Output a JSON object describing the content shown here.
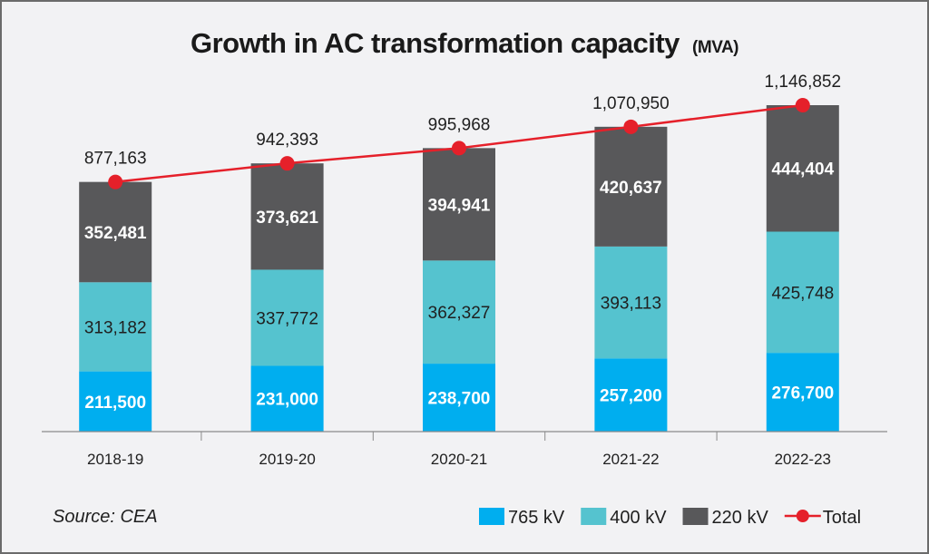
{
  "chart_data": {
    "type": "bar",
    "stacked": true,
    "title": "Growth in AC transformation capacity",
    "title_unit": "(MVA)",
    "xlabel": "",
    "ylabel": "",
    "categories": [
      "2018-19",
      "2019-20",
      "2020-21",
      "2021-22",
      "2022-23"
    ],
    "series": [
      {
        "name": "765 kV",
        "color": "#00aeef",
        "label_style": "white-bold",
        "values": [
          211500,
          231000,
          238700,
          257200,
          276700
        ]
      },
      {
        "name": "400 kV",
        "color": "#55c3cf",
        "label_style": "dark",
        "values": [
          313182,
          337772,
          362327,
          393113,
          425748
        ]
      },
      {
        "name": "220 kV",
        "color": "#58585a",
        "label_style": "white-bold",
        "values": [
          352481,
          373621,
          394941,
          420637,
          444404
        ]
      }
    ],
    "line_series": {
      "name": "Total",
      "type": "line",
      "color": "#e5202a",
      "values": [
        877163,
        942393,
        995968,
        1070950,
        1146852
      ]
    },
    "ylim": [
      0,
      1146852
    ],
    "grid": false,
    "y_axis_visible": false,
    "legend_placement": "bottom-right",
    "source": "Source: CEA"
  }
}
